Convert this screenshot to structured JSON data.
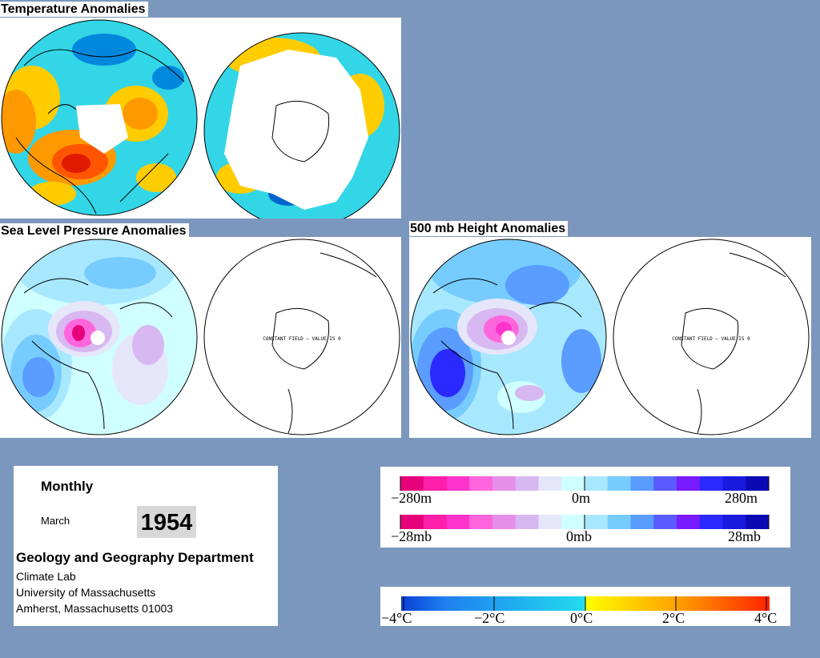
{
  "titles": {
    "temperature": "Temperature Anomalies",
    "slp": "Sea Level Pressure Anomalies",
    "height500": "500 mb Height Anomalies"
  },
  "constant_field_label": "CONSTANT FIELD — VALUE IS 0",
  "info": {
    "period": "Monthly",
    "month": "March",
    "year": "1954",
    "department": "Geology and Geography Department",
    "lines": [
      "Climate Lab",
      "University of Massachusetts",
      "Amherst, Massachusetts 01003"
    ]
  },
  "legend_height": {
    "labels": [
      "−280m",
      "0m",
      "280m"
    ],
    "colors": [
      "#e6007a",
      "#ff1fa8",
      "#ff33cc",
      "#ff66dd",
      "#e58fe8",
      "#d8b8f0",
      "#e6e6fa",
      "#cfffff",
      "#a8e8ff",
      "#77ccff",
      "#5a9cff",
      "#5a5aff",
      "#7a1aff",
      "#2a2aff",
      "#1a1add",
      "#0a0ab5"
    ]
  },
  "legend_slp": {
    "labels": [
      "−28mb",
      "0mb",
      "28mb"
    ],
    "colors": [
      "#e6007a",
      "#ff1fa8",
      "#ff33cc",
      "#ff66dd",
      "#e58fe8",
      "#d8b8f0",
      "#e6e6fa",
      "#cfffff",
      "#a8e8ff",
      "#77ccff",
      "#5a9cff",
      "#5a5aff",
      "#7a1aff",
      "#2a2aff",
      "#1a1add",
      "#0a0ab5"
    ]
  },
  "legend_temp": {
    "labels": [
      "−4°C",
      "−2°C",
      "0°C",
      "2°C",
      "4°C"
    ]
  }
}
